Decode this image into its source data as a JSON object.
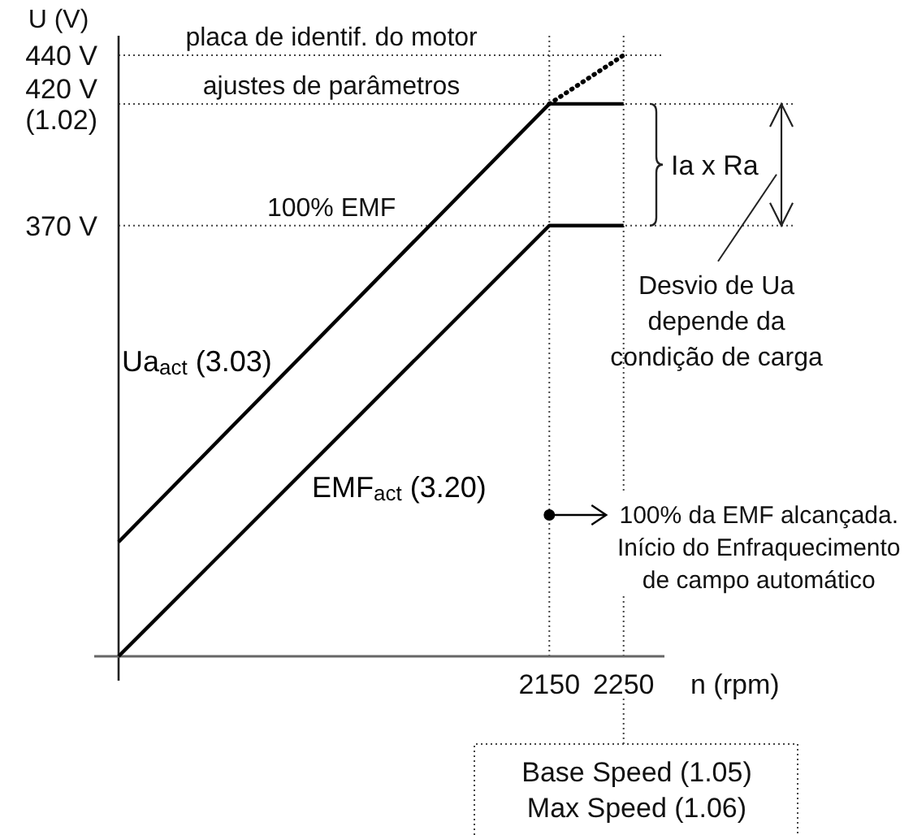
{
  "chart_data": {
    "type": "line",
    "xlabel": "n (rpm)",
    "ylabel": "U (V)",
    "xlim": [
      1570,
      2305
    ],
    "ylim": [
      193,
      448
    ],
    "xticks": [
      2150,
      2250
    ],
    "yticks": [
      {
        "value": 440,
        "label": "440 V"
      },
      {
        "value": 420,
        "label": "420 V\n(1.02)"
      },
      {
        "value": 370,
        "label": "370 V"
      }
    ],
    "series": [
      {
        "name": "Ua$_{act}$ (3.03)",
        "color": "#000000",
        "x": [
          1570,
          2150,
          2250
        ],
        "values": [
          240,
          420,
          420
        ]
      },
      {
        "name": "EMF$_{act}$ (3.20)",
        "color": "#000000",
        "x": [
          1570,
          2150,
          2250
        ],
        "values": [
          193,
          370,
          370
        ]
      },
      {
        "color": "#000000",
        "x": [
          2150,
          2250
        ],
        "values": [
          420,
          440
        ],
        "line_style": "dotted"
      }
    ],
    "ref_lines": [
      {
        "axis": "y",
        "value": 440,
        "label": "placa de identif. do motor",
        "line_style": "dotted"
      },
      {
        "axis": "y",
        "value": 420,
        "label": "ajustes de parâmetros",
        "line_style": "dotted"
      },
      {
        "axis": "y",
        "value": 370,
        "label": "100% EMF",
        "line_style": "dotted"
      },
      {
        "axis": "x",
        "value": 2150,
        "line_style": "dotted"
      },
      {
        "axis": "x",
        "value": 2250,
        "line_style": "dotted"
      }
    ],
    "annotations": [
      "Ia x Ra",
      "Desvio de Ua\ndepende da\ncondição de carga",
      "100% da EMF alcançada.\nInício do Enfraquecimento\nde campo automático",
      "Base Speed (1.05)\nMax Speed (1.06)"
    ]
  }
}
